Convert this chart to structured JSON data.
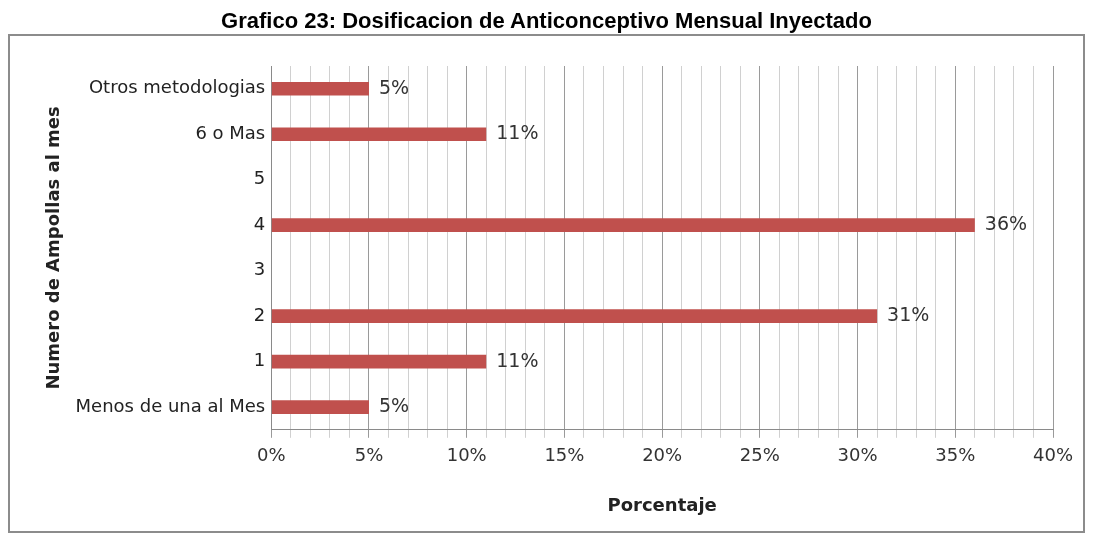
{
  "chart_data": {
    "type": "bar",
    "orientation": "horizontal",
    "title": "Grafico 23: Dosificacion de Anticonceptivo Mensual Inyectado",
    "xlabel": "Porcentaje",
    "ylabel": "Numero de Ampollas al mes",
    "categories": [
      "Otros metodologias",
      "6 o Mas",
      "5",
      "4",
      "3",
      "2",
      "1",
      "Menos de una al Mes"
    ],
    "values": [
      5,
      11,
      null,
      36,
      null,
      31,
      11,
      5
    ],
    "value_labels": [
      "5%",
      "11%",
      null,
      "36%",
      null,
      "31%",
      "11%",
      "5%"
    ],
    "color": "#c0504d",
    "xlim": [
      0,
      40
    ],
    "xticks": [
      {
        "value": 0,
        "label": "0%"
      },
      {
        "value": 1,
        "label": null
      },
      {
        "value": 2,
        "label": null
      },
      {
        "value": 3,
        "label": null
      },
      {
        "value": 4,
        "label": null
      },
      {
        "value": 5,
        "label": "5%"
      },
      {
        "value": 6,
        "label": null
      },
      {
        "value": 7,
        "label": null
      },
      {
        "value": 8,
        "label": null
      },
      {
        "value": 9,
        "label": null
      },
      {
        "value": 10,
        "label": "10%"
      },
      {
        "value": 11,
        "label": null
      },
      {
        "value": 12,
        "label": null
      },
      {
        "value": 13,
        "label": null
      },
      {
        "value": 14,
        "label": null
      },
      {
        "value": 15,
        "label": "15%"
      },
      {
        "value": 16,
        "label": null
      },
      {
        "value": 17,
        "label": null
      },
      {
        "value": 18,
        "label": null
      },
      {
        "value": 19,
        "label": null
      },
      {
        "value": 20,
        "label": "20%"
      },
      {
        "value": 21,
        "label": null
      },
      {
        "value": 22,
        "label": null
      },
      {
        "value": 23,
        "label": null
      },
      {
        "value": 24,
        "label": null
      },
      {
        "value": 25,
        "label": "25%"
      },
      {
        "value": 26,
        "label": null
      },
      {
        "value": 27,
        "label": null
      },
      {
        "value": 28,
        "label": null
      },
      {
        "value": 29,
        "label": null
      },
      {
        "value": 30,
        "label": "30%"
      },
      {
        "value": 31,
        "label": null
      },
      {
        "value": 32,
        "label": null
      },
      {
        "value": 33,
        "label": null
      },
      {
        "value": 34,
        "label": null
      },
      {
        "value": 35,
        "label": "35%"
      },
      {
        "value": 36,
        "label": null
      },
      {
        "value": 37,
        "label": null
      },
      {
        "value": 38,
        "label": null
      },
      {
        "value": 39,
        "label": null
      },
      {
        "value": 40,
        "label": "40%"
      }
    ],
    "grid": "x",
    "legend": false
  }
}
